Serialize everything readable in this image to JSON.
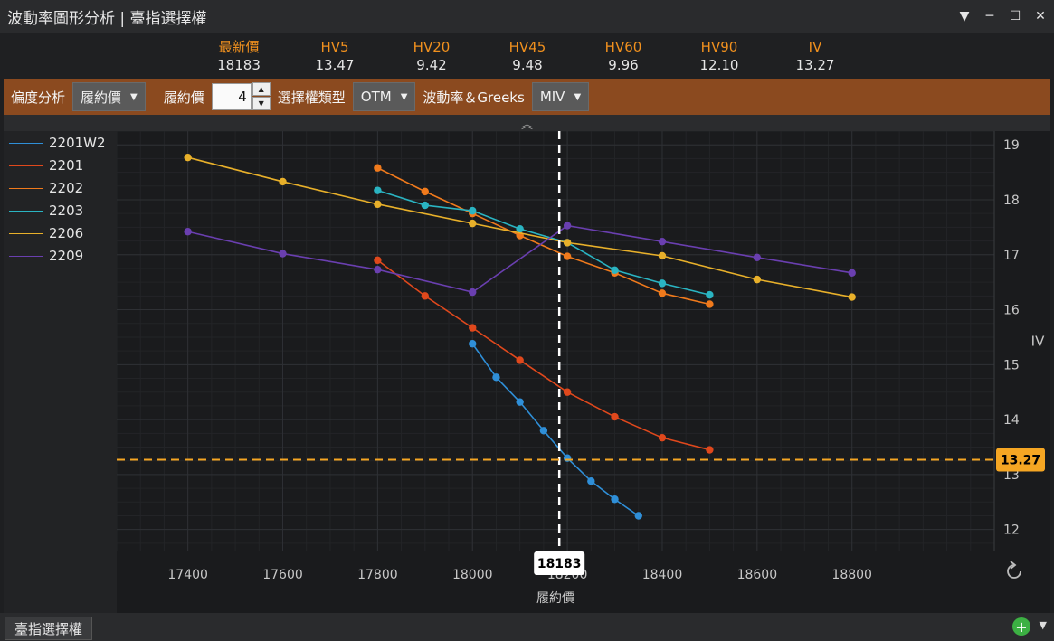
{
  "window": {
    "title": "波動率圖形分析 | 臺指選擇權",
    "controls": [
      "▼",
      "─",
      "☐",
      "✕"
    ]
  },
  "stats": [
    {
      "label": "最新價",
      "value": "18183"
    },
    {
      "label": "HV5",
      "value": "13.47"
    },
    {
      "label": "HV20",
      "value": "9.42"
    },
    {
      "label": "HV45",
      "value": "9.48"
    },
    {
      "label": "HV60",
      "value": "9.96"
    },
    {
      "label": "HV90",
      "value": "12.10"
    },
    {
      "label": "IV",
      "value": "13.27"
    }
  ],
  "toolbar": {
    "skew_label": "偏度分析",
    "skew_value": "履約價",
    "strike_label": "履約價",
    "strike_value": "4",
    "type_label": "選擇權類型",
    "type_value": "OTM",
    "vol_label": "波動率＆Greeks",
    "vol_value": "MIV"
  },
  "bottom": {
    "tab_label": "臺指選擇權"
  },
  "chart_data": {
    "type": "line",
    "xlabel": "履約價",
    "ylabel": "IV",
    "xlim": [
      17250,
      19100
    ],
    "ylim": [
      11.6,
      19.25
    ],
    "x_ticks": [
      17400,
      17600,
      17800,
      18000,
      18200,
      18400,
      18600,
      18800
    ],
    "y_ticks": [
      12,
      13,
      14,
      15,
      16,
      17,
      18,
      19
    ],
    "grid": true,
    "legend_position": "left",
    "current_price": {
      "value": 18183,
      "label": "18183"
    },
    "current_iv": {
      "value": 13.27,
      "label": "13.27"
    },
    "series": [
      {
        "name": "2201W2",
        "color": "#2f8fd8",
        "points": [
          [
            18000,
            15.38
          ],
          [
            18050,
            14.77
          ],
          [
            18100,
            14.32
          ],
          [
            18150,
            13.8
          ],
          [
            18200,
            13.3
          ],
          [
            18250,
            12.88
          ],
          [
            18300,
            12.55
          ],
          [
            18350,
            12.25
          ]
        ]
      },
      {
        "name": "2201",
        "color": "#e0481c",
        "points": [
          [
            17800,
            16.9
          ],
          [
            17900,
            16.25
          ],
          [
            18000,
            15.67
          ],
          [
            18100,
            15.08
          ],
          [
            18200,
            14.5
          ],
          [
            18300,
            14.05
          ],
          [
            18400,
            13.67
          ],
          [
            18500,
            13.45
          ]
        ]
      },
      {
        "name": "2202",
        "color": "#f07a1c",
        "points": [
          [
            17800,
            18.58
          ],
          [
            17900,
            18.15
          ],
          [
            18000,
            17.75
          ],
          [
            18100,
            17.35
          ],
          [
            18200,
            16.97
          ],
          [
            18300,
            16.67
          ],
          [
            18400,
            16.3
          ],
          [
            18500,
            16.1
          ]
        ]
      },
      {
        "name": "2203",
        "color": "#2ab4c2",
        "points": [
          [
            17800,
            18.17
          ],
          [
            17900,
            17.9
          ],
          [
            18000,
            17.8
          ],
          [
            18100,
            17.47
          ],
          [
            18200,
            17.22
          ],
          [
            18300,
            16.72
          ],
          [
            18400,
            16.48
          ],
          [
            18500,
            16.27
          ]
        ]
      },
      {
        "name": "2206",
        "color": "#e8b02a",
        "points": [
          [
            17400,
            18.77
          ],
          [
            17600,
            18.33
          ],
          [
            17800,
            17.92
          ],
          [
            18000,
            17.57
          ],
          [
            18200,
            17.22
          ],
          [
            18400,
            16.98
          ],
          [
            18600,
            16.55
          ],
          [
            18800,
            16.23
          ]
        ]
      },
      {
        "name": "2209",
        "color": "#6a3fb0",
        "points": [
          [
            17400,
            17.42
          ],
          [
            17600,
            17.02
          ],
          [
            17800,
            16.73
          ],
          [
            18000,
            16.32
          ],
          [
            18200,
            17.53
          ],
          [
            18400,
            17.24
          ],
          [
            18600,
            16.95
          ],
          [
            18800,
            16.67
          ]
        ]
      }
    ]
  }
}
